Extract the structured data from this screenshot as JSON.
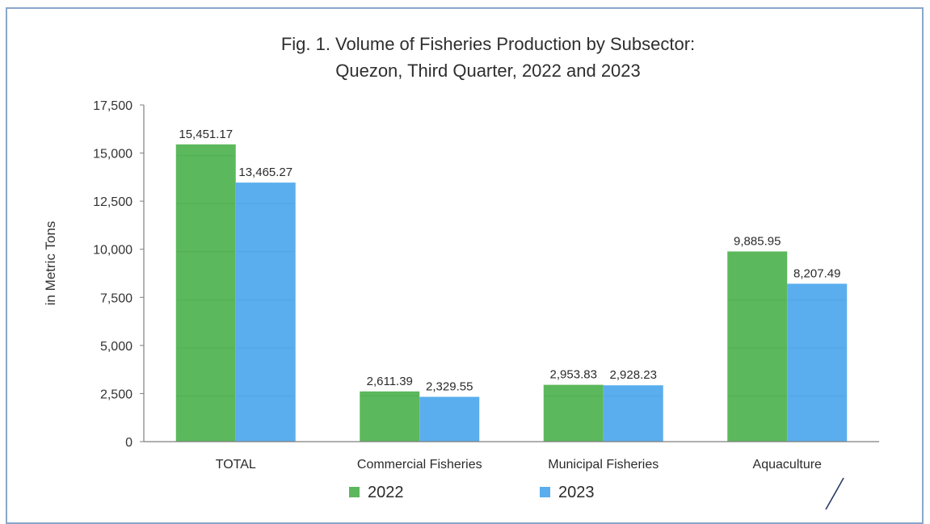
{
  "chart_data": {
    "type": "bar",
    "title": "Fig. 1. Volume of Fisheries Production by Subsector:",
    "subtitle": "Quezon, Third Quarter, 2022 and 2023",
    "xlabel": "",
    "ylabel": "in Metric Tons",
    "ylim": [
      0,
      17500
    ],
    "yticks": [
      "0",
      "2,500",
      "5,000",
      "7,500",
      "10,000",
      "12,500",
      "15,000",
      "17,500"
    ],
    "categories": [
      "TOTAL",
      "Commercial Fisheries",
      "Municipal Fisheries",
      "Aquaculture"
    ],
    "series": [
      {
        "name": "2022",
        "color": "#5cb85c",
        "values": [
          15451.17,
          2611.39,
          2953.83,
          9885.95
        ],
        "labels": [
          "15,451.17",
          "2,611.39",
          "2,953.83",
          "9,885.95"
        ]
      },
      {
        "name": "2023",
        "color": "#5aaeee",
        "values": [
          13465.27,
          2329.55,
          2928.23,
          8207.49
        ],
        "labels": [
          "13,465.27",
          "2,329.55",
          "2,928.23",
          "8,207.49"
        ]
      }
    ],
    "grid": false,
    "legend": "bottom-center"
  }
}
